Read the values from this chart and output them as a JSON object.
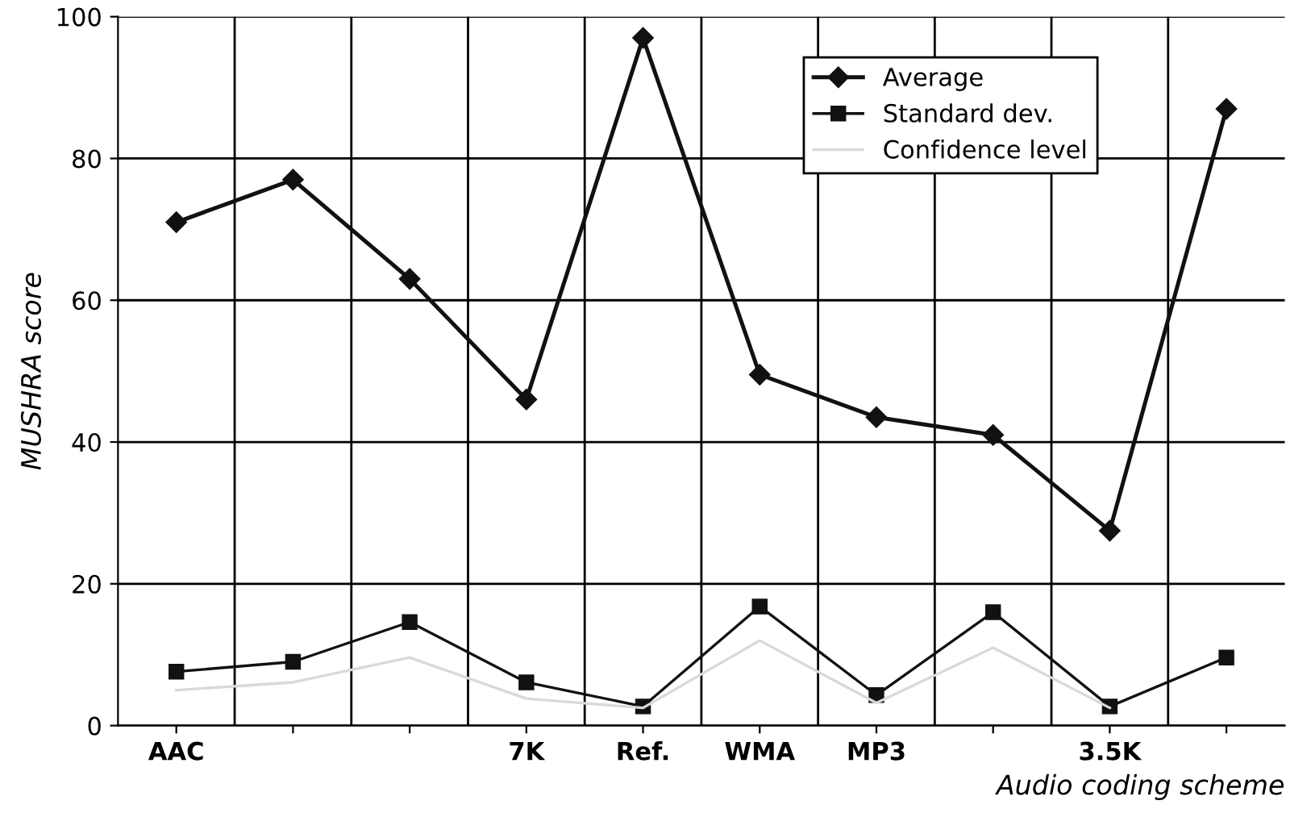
{
  "chart_data": {
    "type": "line",
    "xlabel": "Audio coding scheme",
    "ylabel": "MUSHRA score",
    "categories": [
      "AAC",
      null,
      null,
      "7K",
      "Ref.",
      "WMA",
      "MP3",
      null,
      "3.5K",
      null
    ],
    "series": [
      {
        "name": "Average",
        "color": "#111111",
        "marker": "diamond",
        "values": [
          71,
          77,
          63,
          46,
          97,
          49.5,
          43.5,
          41,
          27.5,
          87
        ]
      },
      {
        "name": "Standard dev.",
        "color": "#111111",
        "marker": "square",
        "values": [
          7.6,
          9,
          14.6,
          6.1,
          2.7,
          16.8,
          4.3,
          16,
          2.7,
          9.6
        ]
      },
      {
        "name": "Confidence level",
        "color": "#d9d9d9",
        "marker": "none",
        "values": [
          5,
          6.1,
          9.6,
          3.8,
          2.5,
          12,
          3.2,
          11,
          2.5,
          null
        ]
      }
    ],
    "ylim": [
      0,
      100
    ],
    "yticks": [
      0,
      20,
      40,
      60,
      80,
      100
    ],
    "grid": true,
    "legend": "top right"
  }
}
